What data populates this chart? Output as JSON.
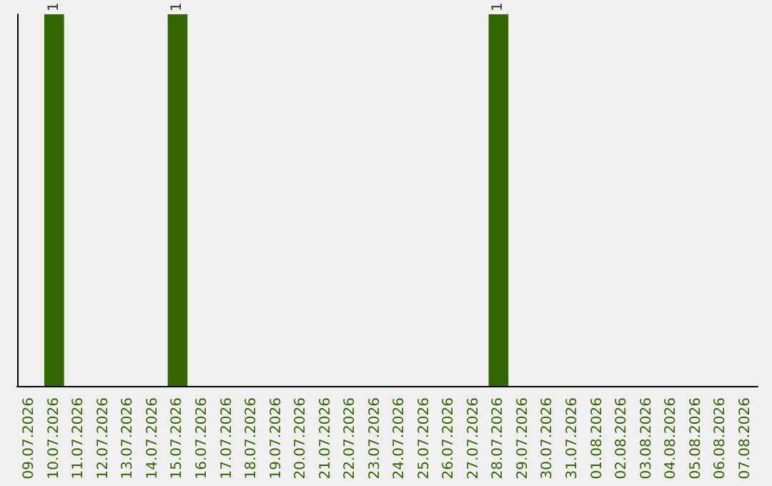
{
  "chart_data": {
    "type": "bar",
    "categories": [
      "09.07.2026",
      "10.07.2026",
      "11.07.2026",
      "12.07.2026",
      "13.07.2026",
      "14.07.2026",
      "15.07.2026",
      "16.07.2026",
      "17.07.2026",
      "18.07.2026",
      "19.07.2026",
      "20.07.2026",
      "21.07.2026",
      "22.07.2026",
      "23.07.2026",
      "24.07.2026",
      "25.07.2026",
      "26.07.2026",
      "27.07.2026",
      "28.07.2026",
      "29.07.2026",
      "30.07.2026",
      "31.07.2026",
      "01.08.2026",
      "02.08.2026",
      "03.08.2026",
      "04.08.2026",
      "05.08.2026",
      "06.08.2026",
      "07.08.2026"
    ],
    "values": [
      0,
      1,
      0,
      0,
      0,
      0,
      1,
      0,
      0,
      0,
      0,
      0,
      0,
      0,
      0,
      0,
      0,
      0,
      0,
      1,
      0,
      0,
      0,
      0,
      0,
      0,
      0,
      0,
      0,
      0
    ],
    "value_labels": [
      null,
      "1",
      null,
      null,
      null,
      null,
      "1",
      null,
      null,
      null,
      null,
      null,
      null,
      null,
      null,
      null,
      null,
      null,
      null,
      "1",
      null,
      null,
      null,
      null,
      null,
      null,
      null,
      null,
      null,
      null
    ],
    "color": "#336600",
    "ylim": [
      0,
      1
    ],
    "tick_labels": "x",
    "grid": false
  }
}
